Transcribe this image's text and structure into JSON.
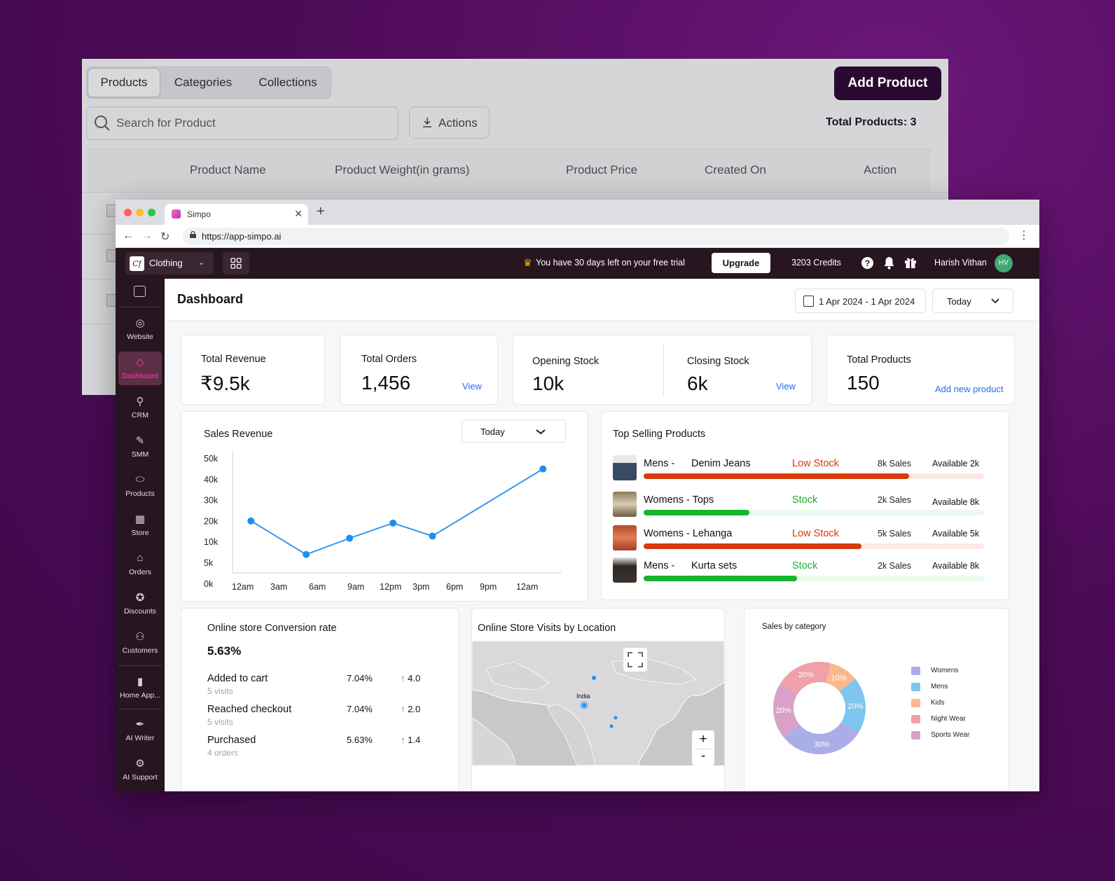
{
  "back_window": {
    "tabs": [
      {
        "label": "Products",
        "active": true
      },
      {
        "label": "Categories",
        "active": false
      },
      {
        "label": "Collections",
        "active": false
      }
    ],
    "add_product_label": "Add Product",
    "search_placeholder": "Search for Product",
    "actions_label": "Actions",
    "total_products": "Total Products: 3",
    "columns": [
      "Product Name",
      "Product Weight(in grams)",
      "Product Price",
      "Created On",
      "Action"
    ]
  },
  "browser": {
    "tab_title": "Simpo",
    "url": "https://app-simpo.ai"
  },
  "topbar": {
    "store_logo": "Cf",
    "store_name": "Clothing",
    "trial_text": "You have 30 days left on your free trial",
    "upgrade_label": "Upgrade",
    "credits": "3203 Credits",
    "user_name": "Harish Vithan",
    "user_initials": "HV"
  },
  "sidebar": {
    "items": [
      {
        "label": "Website",
        "icon": "globe-icon",
        "glyph": "◎",
        "active": false
      },
      {
        "label": "Dashboard",
        "icon": "dashboard-icon",
        "glyph": "◇",
        "active": true
      },
      {
        "label": "CRM",
        "icon": "crm-icon",
        "glyph": "⚲",
        "active": false
      },
      {
        "label": "SMM",
        "icon": "megaphone-icon",
        "glyph": "✎",
        "active": false
      },
      {
        "label": "Products",
        "icon": "products-icon",
        "glyph": "⬭",
        "active": false
      },
      {
        "label": "Store",
        "icon": "store-icon",
        "glyph": "▦",
        "active": false
      },
      {
        "label": "Orders",
        "icon": "bag-icon",
        "glyph": "⌂",
        "active": false
      },
      {
        "label": "Discounts",
        "icon": "discount-icon",
        "glyph": "✪",
        "active": false
      },
      {
        "label": "Customers",
        "icon": "customers-icon",
        "glyph": "⚇",
        "active": false
      },
      {
        "label": "Home App...",
        "icon": "phone-icon",
        "glyph": "▮",
        "active": false
      },
      {
        "label": "AI Writer",
        "icon": "feather-icon",
        "glyph": "✒",
        "active": false
      },
      {
        "label": "AI Support",
        "icon": "support-icon",
        "glyph": "⚙",
        "active": false
      }
    ]
  },
  "dashboard": {
    "title": "Dashboard",
    "date_range": "1 Apr 2024 - 1 Apr 2024",
    "period": "Today",
    "kpis": {
      "revenue": {
        "label": "Total Revenue",
        "value": "₹9.5k"
      },
      "orders": {
        "label": "Total Orders",
        "value": "1,456",
        "link": "View"
      },
      "opening_stock": {
        "label": "Opening Stock",
        "value": "10k"
      },
      "closing_stock": {
        "label": "Closing Stock",
        "value": "6k",
        "link": "View"
      },
      "products": {
        "label": "Total Products",
        "value": "150",
        "link": "Add new product"
      }
    },
    "sales_revenue": {
      "title": "Sales Revenue",
      "period": "Today"
    },
    "top_selling": {
      "title": "Top Selling Products",
      "items": [
        {
          "category": "Mens -",
          "name": "Denim Jeans",
          "stock": "Low Stock",
          "sales": "8k Sales",
          "available": "Available 2k",
          "level": 0.78,
          "color": "#d63b0b",
          "track": "#fde9e3"
        },
        {
          "category": "Womens - Tops",
          "name": "",
          "stock": "Stock",
          "sales": "2k Sales",
          "available": "Available 8k",
          "level": 0.31,
          "color": "#15b52d",
          "track": "#e9fbec"
        },
        {
          "category": "Womens - Lehanga",
          "name": "",
          "stock": "Low Stock",
          "sales": "5k Sales",
          "available": "Available 5k",
          "level": 0.64,
          "color": "#d63b0b",
          "track": "#fde9e3"
        },
        {
          "category": "Mens -",
          "name": "Kurta sets",
          "stock": "Stock",
          "sales": "2k Sales",
          "available": "Available 8k",
          "level": 0.45,
          "color": "#15b52d",
          "track": "#e9fbec"
        }
      ]
    },
    "conversion": {
      "title": "Online store Conversion rate",
      "rate": "5.63%",
      "rows": [
        {
          "label": "Added to cart",
          "sub": "5 visits",
          "pct": "7.04%",
          "delta": "4.0"
        },
        {
          "label": "Reached checkout",
          "sub": "5 visits",
          "pct": "7.04%",
          "delta": "2.0"
        },
        {
          "label": "Purchased",
          "sub": "4 orders",
          "pct": "5.63%",
          "delta": "1.4"
        }
      ]
    },
    "visits_map": {
      "title": "Online Store Visits by Location",
      "label": "India",
      "zoom_in": "+",
      "zoom_out": "-"
    },
    "sales_by_category": {
      "title": "Sales by category"
    }
  },
  "chart_data": [
    {
      "type": "line",
      "title": "",
      "x": [
        "12am",
        "3am",
        "6am",
        "9am",
        "12pm",
        "3pm",
        "6pm",
        "9pm",
        "12am"
      ],
      "x_positions": [
        0,
        1,
        2,
        3,
        4,
        5,
        6,
        7,
        8
      ],
      "points": [
        {
          "x": 0.2,
          "y": 24000
        },
        {
          "x": 1.6,
          "y": 8500
        },
        {
          "x": 2.7,
          "y": 16000
        },
        {
          "x": 3.8,
          "y": 23000
        },
        {
          "x": 4.8,
          "y": 17000
        },
        {
          "x": 7.6,
          "y": 48000
        }
      ],
      "y_ticks": [
        "0k",
        "5k",
        "10k",
        "20k",
        "30k",
        "40k",
        "50k"
      ],
      "ylim": [
        0,
        55000
      ],
      "color": "#1e8ff0"
    },
    {
      "type": "pie",
      "title": "Sales by category",
      "labels": [
        "Womens",
        "Mens",
        "Kids",
        "Night Wear",
        "Sports Wear"
      ],
      "values": [
        30,
        20,
        10,
        20,
        20
      ],
      "colors": [
        "#a9aee8",
        "#7ec6ee",
        "#fbb88c",
        "#f0a0a8",
        "#d8a2c8"
      ],
      "legend": "right"
    }
  ]
}
